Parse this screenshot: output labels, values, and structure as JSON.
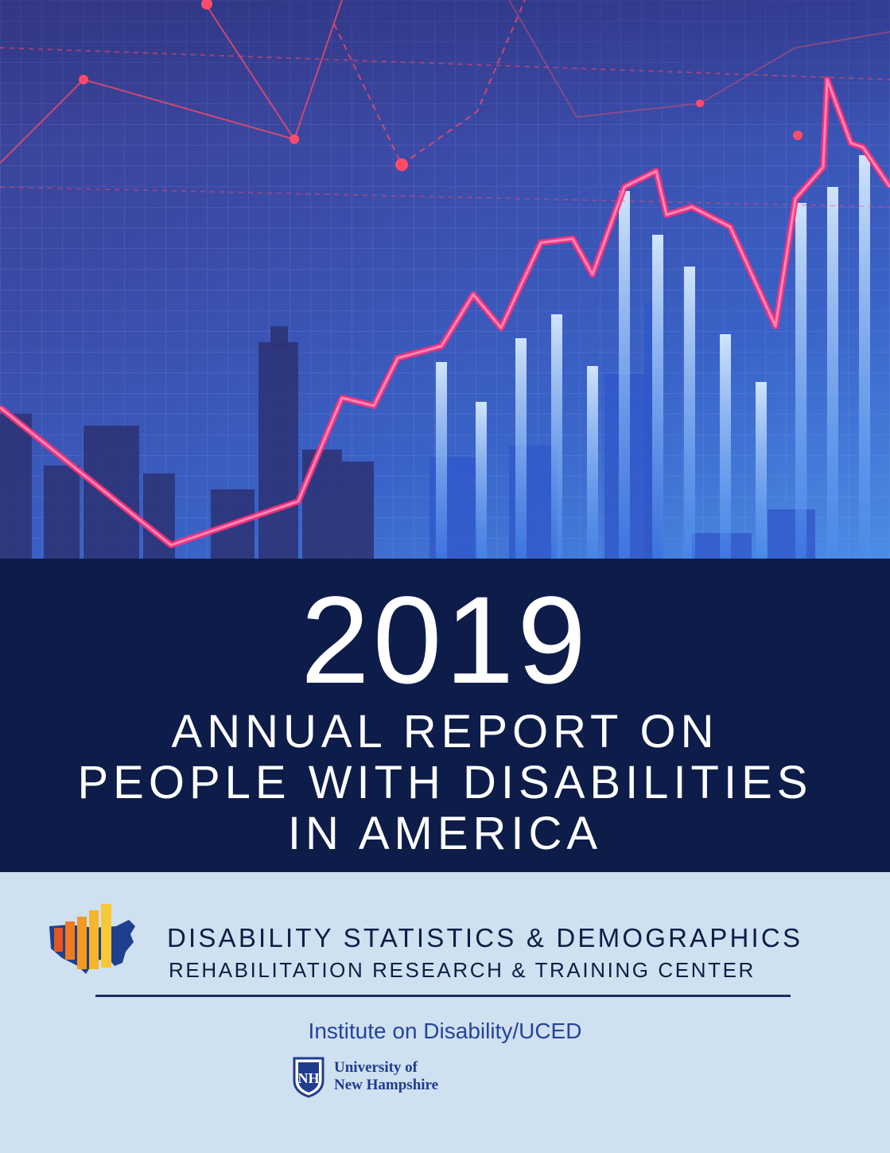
{
  "cover": {
    "year": "2019",
    "subtitle_lines": [
      "ANNUAL REPORT ON",
      "PEOPLE WITH DISABILITIES",
      "IN AMERICA"
    ]
  },
  "organization": {
    "name_line1": "DISABILITY STATISTICS & DEMOGRAPHICS",
    "name_line2": "REHABILITATION RESEARCH & TRAINING CENTER",
    "logo_icon": "us-map-bar-chart-icon"
  },
  "institute": {
    "name": "Institute on Disability/UCED",
    "university_line1": "University of",
    "university_line2": "New Hampshire",
    "shield_icon": "unh-shield-icon",
    "shield_initials": "NH"
  },
  "colors": {
    "title_band": "#0e1c49",
    "lower_panel": "#cfe0f0",
    "text_dark": "#0f1d45",
    "institute_blue": "#25449a",
    "hero_line": "#ff2f7a"
  }
}
